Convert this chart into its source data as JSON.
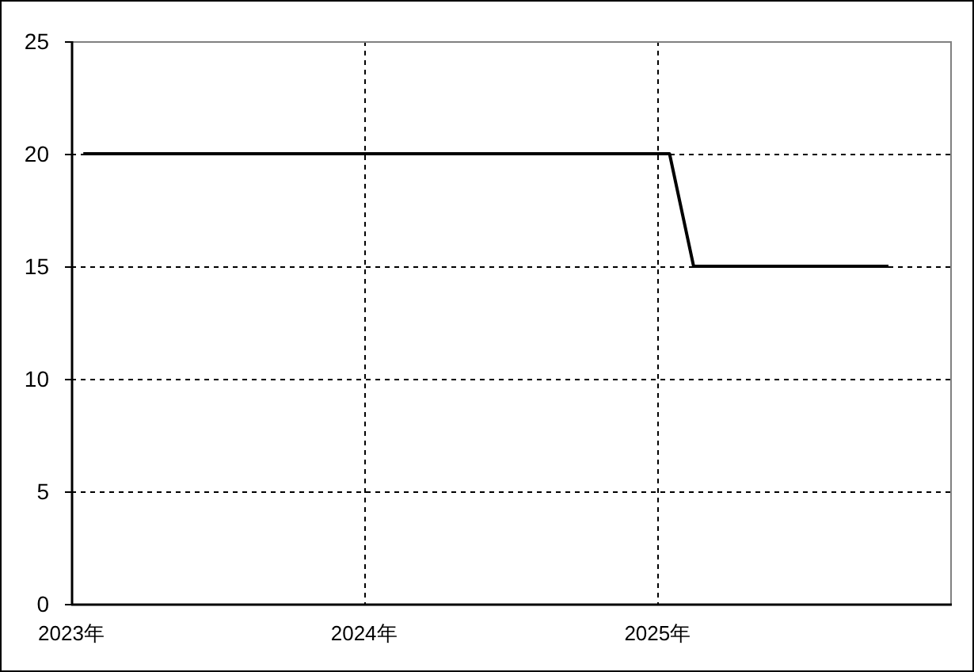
{
  "chart_data": {
    "type": "line",
    "x": [
      "2023-01-16",
      "2025-01-16",
      "2025-02-15",
      "2025-10-16"
    ],
    "values": [
      20,
      20,
      15,
      15
    ],
    "color": "#000000",
    "line_style": "solid",
    "xlim": [
      "2023-01-01",
      "2026-01-01"
    ],
    "xticks": [
      {
        "value": "2023-01-01",
        "label": "2023年"
      },
      {
        "value": "2024-01-01",
        "label": "2024年"
      },
      {
        "value": "2025-01-01",
        "label": "2025年"
      }
    ],
    "ylim": [
      0,
      25
    ],
    "yticks": [
      0,
      5,
      10,
      15,
      20,
      25
    ],
    "grid": true
  }
}
